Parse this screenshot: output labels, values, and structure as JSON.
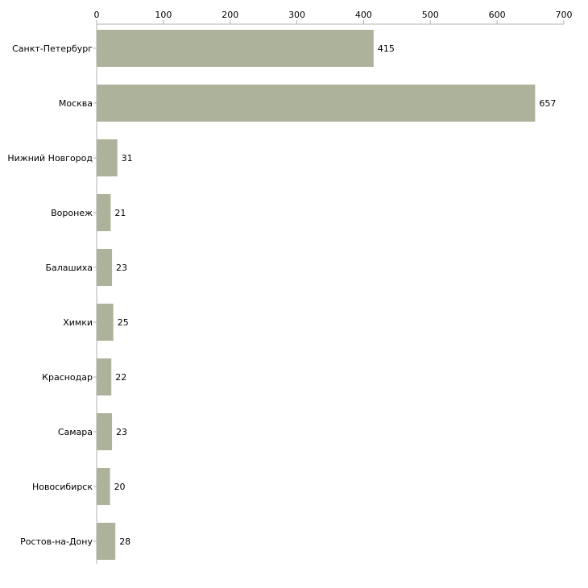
{
  "chart_data": {
    "type": "bar",
    "orientation": "horizontal",
    "title": "",
    "xlabel": "",
    "ylabel": "",
    "xlim": [
      0,
      700
    ],
    "x_ticks": [
      0,
      100,
      200,
      300,
      400,
      500,
      600,
      700
    ],
    "grid": false,
    "legend": "none",
    "bar_color": "#adb29a",
    "axis_color": "#b0b0b0",
    "categories": [
      "Санкт-Петербург",
      "Москва",
      "Нижний Новгород",
      "Воронеж",
      "Балашиха",
      "Химки",
      "Краснодар",
      "Самара",
      "Новосибирск",
      "Ростов-на-Дону"
    ],
    "values": [
      415,
      657,
      31,
      21,
      23,
      25,
      22,
      23,
      20,
      28
    ]
  }
}
